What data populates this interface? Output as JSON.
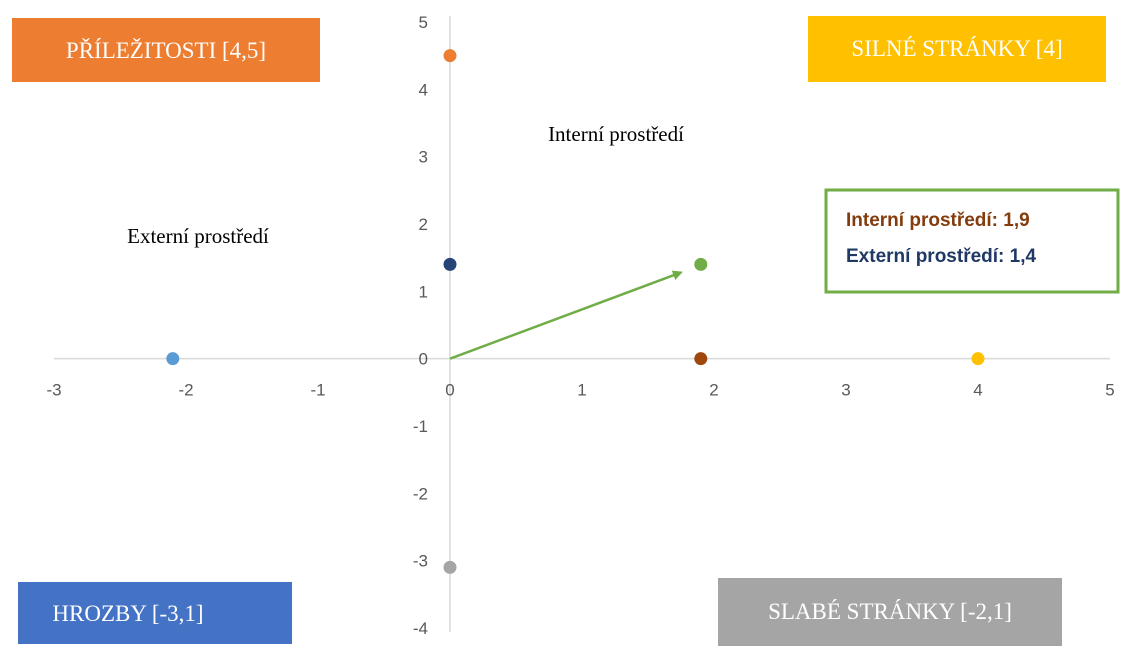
{
  "chart_data": {
    "type": "scatter",
    "title": "",
    "xlabel": "",
    "ylabel": "",
    "xlim": [
      -3,
      5
    ],
    "ylim": [
      -4,
      5
    ],
    "x_ticks": [
      "-3",
      "-2",
      "-1",
      "0",
      "1",
      "2",
      "3",
      "4",
      "5"
    ],
    "y_ticks": [
      "5",
      "4",
      "3",
      "2",
      "1",
      "0",
      "-1",
      "-2",
      "-3",
      "-4"
    ],
    "grid": false,
    "points": [
      {
        "x": 0,
        "y": 4.5,
        "color": "#ED7D31"
      },
      {
        "x": 0,
        "y": 1.4,
        "color": "#264478"
      },
      {
        "x": 0,
        "y": -3.1,
        "color": "#A5A5A5"
      },
      {
        "x": -2.1,
        "y": 0,
        "color": "#5B9BD5"
      },
      {
        "x": 1.9,
        "y": 0,
        "color": "#9E480E"
      },
      {
        "x": 4,
        "y": 0,
        "color": "#FFC000"
      },
      {
        "x": 1.9,
        "y": 1.4,
        "color": "#70AD47"
      }
    ],
    "vector": {
      "from": [
        0,
        0
      ],
      "to": [
        1.75,
        1.28
      ],
      "color": "#70AD47"
    },
    "quadrant_labels": [
      {
        "text": "PŘÍLEŽITOSTI [4,5]",
        "color": "#ED7D31"
      },
      {
        "text": "SILNÉ STRÁNKY [4]",
        "color": "#FFC000"
      },
      {
        "text": "HROZBY [-3,1]",
        "color": "#4472C4"
      },
      {
        "text": "SLABÉ STRÁNKY [-2,1]",
        "color": "#A5A5A5"
      }
    ],
    "annotations": [
      "Interní prostředí",
      "Externí prostředí"
    ],
    "info_box": {
      "border_color": "#70AD47",
      "lines": [
        {
          "text": "Interní prostředí: 1,9",
          "color": "#843C0C"
        },
        {
          "text": "Externí prostředí: 1,4",
          "color": "#1F3864"
        }
      ]
    },
    "axis_color": "#D9D9D9"
  }
}
